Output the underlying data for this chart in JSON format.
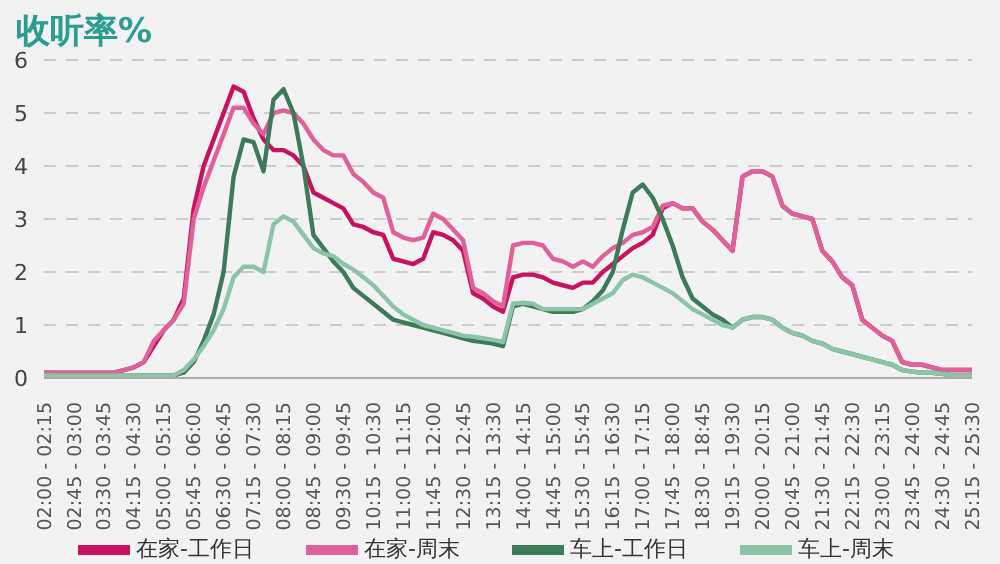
{
  "chart_data": {
    "type": "line",
    "title": "收听率%",
    "categories": [
      "02:00 - 02:15",
      null,
      null,
      "02:45 - 03:00",
      null,
      null,
      "03:30 - 03:45",
      null,
      null,
      "04:15 - 04:30",
      null,
      null,
      "05:00 - 05:15",
      null,
      null,
      "05:45 - 06:00",
      null,
      null,
      "06:30 - 06:45",
      null,
      null,
      "07:15 - 07:30",
      null,
      null,
      "08:00 - 08:15",
      null,
      null,
      "08:45 - 09:00",
      null,
      null,
      "09:30 - 09:45",
      null,
      null,
      "10:15 - 10:30",
      null,
      null,
      "11:00 - 11:15",
      null,
      null,
      "11:45 - 12:00",
      null,
      null,
      "12:30 - 12:45",
      null,
      null,
      "13:15 - 13:30",
      null,
      null,
      "14:00 - 14:15",
      null,
      null,
      "14:45 - 15:00",
      null,
      null,
      "15:30 - 15:45",
      null,
      null,
      "16:15 - 16:30",
      null,
      null,
      "17:00 - 17:15",
      null,
      null,
      "17:45 - 18:00",
      null,
      null,
      "18:30 - 18:45",
      null,
      null,
      "19:15 - 19:30",
      null,
      null,
      "20:00 - 20:15",
      null,
      null,
      "20:45 - 21:00",
      null,
      null,
      "21:30 - 21:45",
      null,
      null,
      "22:15 - 22:30",
      null,
      null,
      "23:00 - 23:15",
      null,
      null,
      "23:45 - 24:00",
      null,
      null,
      "24:30 - 24:45",
      null,
      null,
      "25:15 - 25:30"
    ],
    "series": [
      {
        "name": "在家-工作日",
        "color": "#c8125f",
        "values": [
          0.1,
          0.1,
          0.1,
          0.1,
          0.1,
          0.1,
          0.1,
          0.1,
          0.15,
          0.2,
          0.3,
          0.6,
          0.9,
          1.1,
          1.5,
          3.2,
          4.0,
          4.5,
          5.0,
          5.5,
          5.4,
          4.9,
          4.5,
          4.3,
          4.3,
          4.2,
          4.0,
          3.5,
          3.4,
          3.3,
          3.2,
          2.9,
          2.85,
          2.75,
          2.7,
          2.25,
          2.2,
          2.15,
          2.25,
          2.75,
          2.7,
          2.6,
          2.4,
          1.6,
          1.5,
          1.35,
          1.25,
          1.9,
          1.95,
          1.95,
          1.9,
          1.8,
          1.75,
          1.7,
          1.8,
          1.8,
          2.0,
          2.15,
          2.3,
          2.45,
          2.55,
          2.7,
          3.2,
          3.3,
          3.2,
          3.2,
          2.95,
          2.8,
          2.6,
          2.4,
          3.8,
          3.9,
          3.9,
          3.8,
          3.25,
          3.1,
          3.05,
          3.0,
          2.4,
          2.2,
          1.9,
          1.75,
          1.1,
          0.95,
          0.8,
          0.7,
          0.3,
          0.25,
          0.25,
          0.2,
          0.15,
          0.15,
          0.15,
          0.15
        ]
      },
      {
        "name": "在家-周末",
        "color": "#e0609a",
        "values": [
          0.1,
          0.1,
          0.1,
          0.1,
          0.1,
          0.1,
          0.1,
          0.1,
          0.15,
          0.2,
          0.3,
          0.7,
          0.9,
          1.1,
          1.4,
          3.0,
          3.6,
          4.1,
          4.6,
          5.1,
          5.1,
          4.8,
          4.6,
          5.0,
          5.05,
          5.0,
          4.8,
          4.5,
          4.3,
          4.2,
          4.2,
          3.85,
          3.7,
          3.5,
          3.4,
          2.75,
          2.65,
          2.6,
          2.65,
          3.1,
          3.0,
          2.8,
          2.6,
          1.7,
          1.6,
          1.45,
          1.35,
          2.5,
          2.55,
          2.55,
          2.5,
          2.25,
          2.2,
          2.1,
          2.2,
          2.1,
          2.3,
          2.45,
          2.55,
          2.7,
          2.75,
          2.85,
          3.25,
          3.3,
          3.2,
          3.2,
          2.95,
          2.8,
          2.6,
          2.4,
          3.8,
          3.9,
          3.9,
          3.8,
          3.25,
          3.1,
          3.05,
          3.0,
          2.4,
          2.2,
          1.9,
          1.75,
          1.1,
          0.95,
          0.8,
          0.7,
          0.3,
          0.25,
          0.25,
          0.2,
          0.15,
          0.15,
          0.15,
          0.15
        ]
      },
      {
        "name": "车上-工作日",
        "color": "#3d7a5a",
        "values": [
          0.05,
          0.05,
          0.05,
          0.05,
          0.05,
          0.05,
          0.05,
          0.05,
          0.05,
          0.05,
          0.05,
          0.05,
          0.05,
          0.05,
          0.1,
          0.3,
          0.7,
          1.2,
          2.0,
          3.8,
          4.5,
          4.45,
          3.9,
          5.25,
          5.45,
          5.0,
          4.0,
          2.7,
          2.45,
          2.2,
          2.0,
          1.7,
          1.55,
          1.4,
          1.25,
          1.1,
          1.05,
          1.0,
          0.95,
          0.9,
          0.85,
          0.8,
          0.75,
          0.7,
          0.68,
          0.65,
          0.6,
          1.35,
          1.4,
          1.35,
          1.3,
          1.25,
          1.25,
          1.25,
          1.3,
          1.45,
          1.65,
          2.0,
          2.8,
          3.5,
          3.65,
          3.4,
          3.0,
          2.5,
          1.9,
          1.5,
          1.35,
          1.2,
          1.1,
          0.95,
          1.1,
          1.15,
          1.15,
          1.1,
          0.95,
          0.85,
          0.8,
          0.7,
          0.65,
          0.55,
          0.5,
          0.45,
          0.4,
          0.35,
          0.3,
          0.25,
          0.15,
          0.12,
          0.1,
          0.1,
          0.08,
          0.05,
          0.05,
          0.05
        ]
      },
      {
        "name": "车上-周末",
        "color": "#8cc4a8",
        "values": [
          0.05,
          0.05,
          0.05,
          0.05,
          0.05,
          0.05,
          0.05,
          0.05,
          0.05,
          0.05,
          0.05,
          0.05,
          0.05,
          0.05,
          0.15,
          0.35,
          0.6,
          0.9,
          1.3,
          1.9,
          2.1,
          2.1,
          2.0,
          2.9,
          3.05,
          2.95,
          2.7,
          2.45,
          2.35,
          2.3,
          2.15,
          2.05,
          1.9,
          1.75,
          1.55,
          1.35,
          1.2,
          1.1,
          1.0,
          0.95,
          0.9,
          0.85,
          0.8,
          0.78,
          0.75,
          0.72,
          0.68,
          1.4,
          1.42,
          1.4,
          1.3,
          1.3,
          1.3,
          1.3,
          1.3,
          1.4,
          1.5,
          1.6,
          1.85,
          1.95,
          1.9,
          1.8,
          1.7,
          1.6,
          1.45,
          1.3,
          1.2,
          1.1,
          1.0,
          0.95,
          1.1,
          1.15,
          1.15,
          1.1,
          0.95,
          0.85,
          0.8,
          0.7,
          0.65,
          0.55,
          0.5,
          0.45,
          0.4,
          0.35,
          0.3,
          0.25,
          0.15,
          0.12,
          0.1,
          0.1,
          0.08,
          0.05,
          0.05,
          0.05
        ]
      }
    ],
    "ylim": [
      0,
      6
    ],
    "yticks": [
      0,
      1,
      2,
      3,
      4,
      5,
      6
    ],
    "grid": "y",
    "legend": "bottom",
    "marker": "none",
    "line_style": "solid"
  }
}
